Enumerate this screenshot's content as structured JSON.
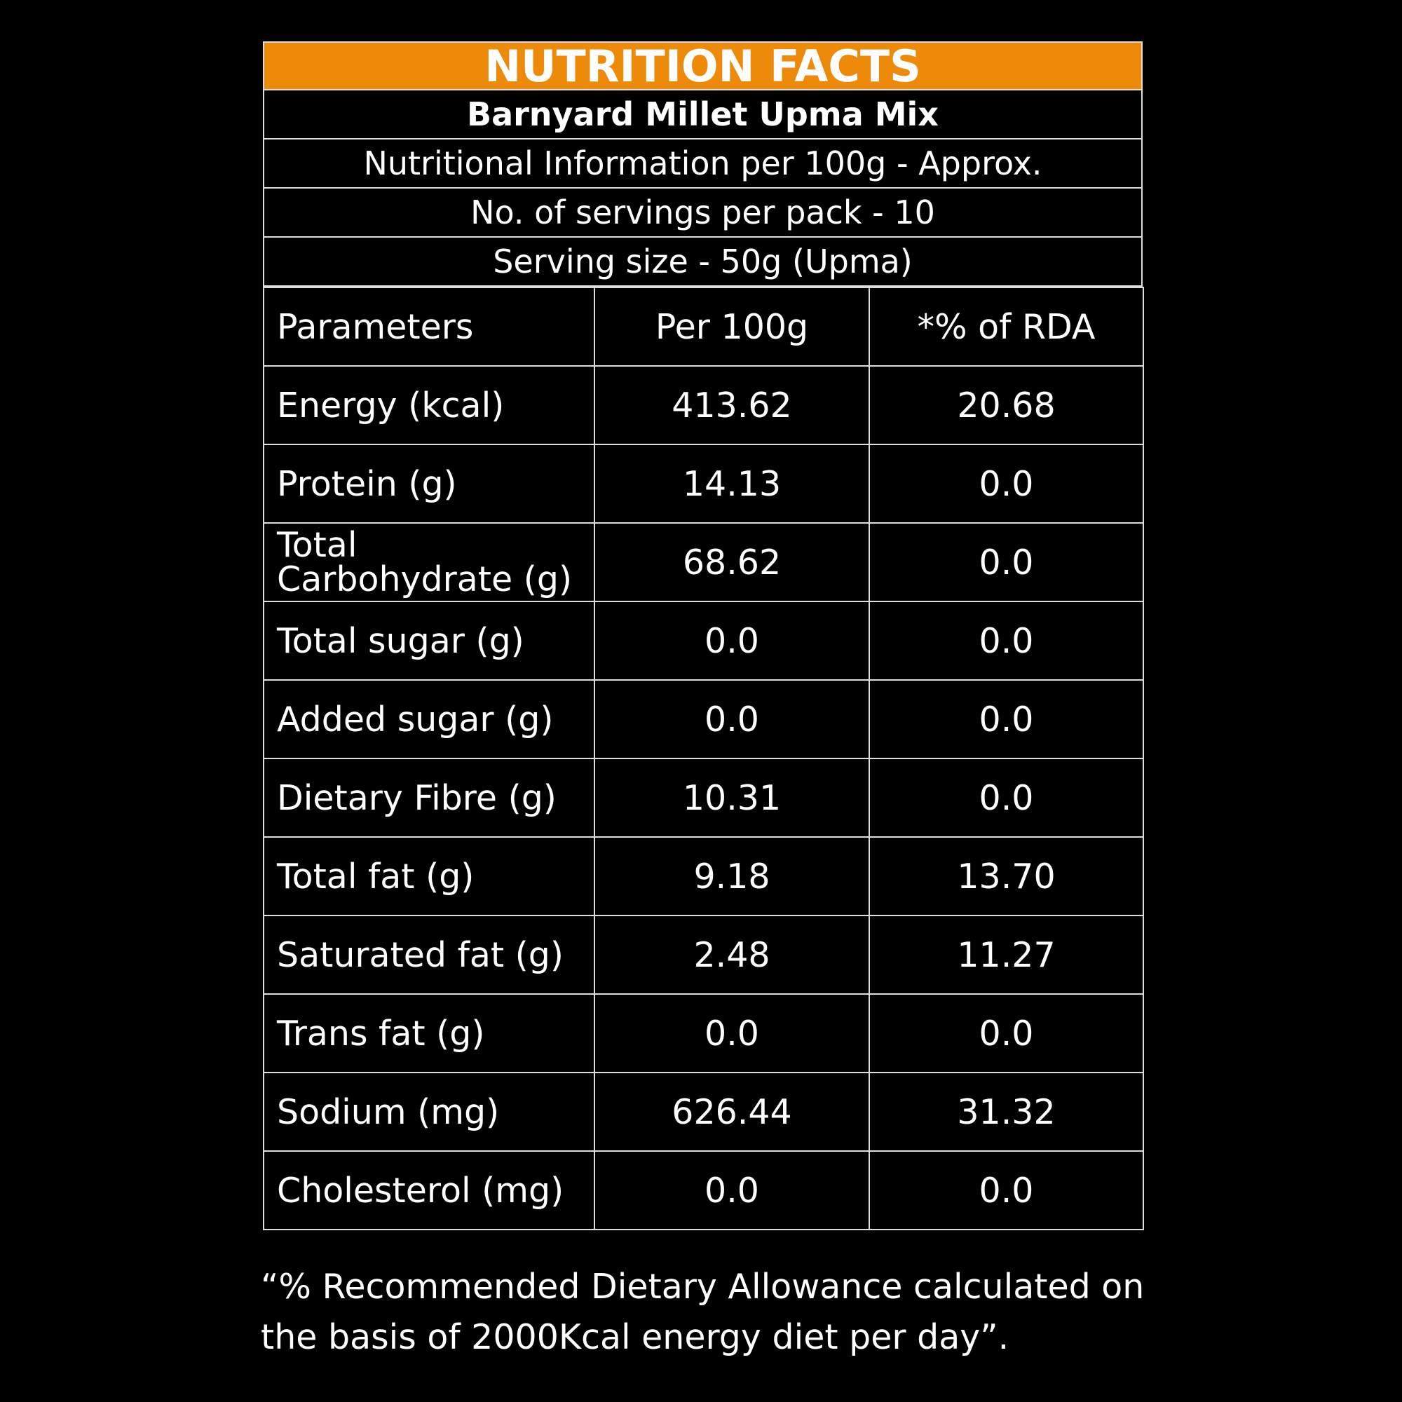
{
  "title": "NUTRITION FACTS",
  "product": "Barnyard Millet Upma Mix",
  "info_lines": [
    "Nutritional Information per 100g - Approx.",
    "No. of servings per pack - 10",
    "Serving size - 50g (Upma)"
  ],
  "table": {
    "headers": [
      "Parameters",
      "Per 100g",
      "*% of RDA"
    ],
    "rows": [
      {
        "param": "Energy (kcal)",
        "per100g": "413.62",
        "rda": "20.68"
      },
      {
        "param": "Protein (g)",
        "per100g": "14.13",
        "rda": "0.0"
      },
      {
        "param": "Total Carbohydrate (g)",
        "per100g": "68.62",
        "rda": "0.0"
      },
      {
        "param": "Total sugar (g)",
        "per100g": "0.0",
        "rda": "0.0"
      },
      {
        "param": "Added sugar (g)",
        "per100g": "0.0",
        "rda": "0.0"
      },
      {
        "param": "Dietary Fibre (g)",
        "per100g": "10.31",
        "rda": "0.0"
      },
      {
        "param": "Total fat (g)",
        "per100g": "9.18",
        "rda": "13.70"
      },
      {
        "param": "Saturated fat (g)",
        "per100g": "2.48",
        "rda": "11.27"
      },
      {
        "param": "Trans fat (g)",
        "per100g": "0.0",
        "rda": "0.0"
      },
      {
        "param": "Sodium (mg)",
        "per100g": "626.44",
        "rda": "31.32"
      },
      {
        "param": "Cholesterol (mg)",
        "per100g": "0.0",
        "rda": "0.0"
      }
    ]
  },
  "footnote": "“% Recommended Dietary Allowance calculated on the basis of 2000Kcal energy diet per day”.",
  "colors": {
    "header_band": "#ee8a0a",
    "background": "#000000",
    "text": "#ffffff"
  }
}
